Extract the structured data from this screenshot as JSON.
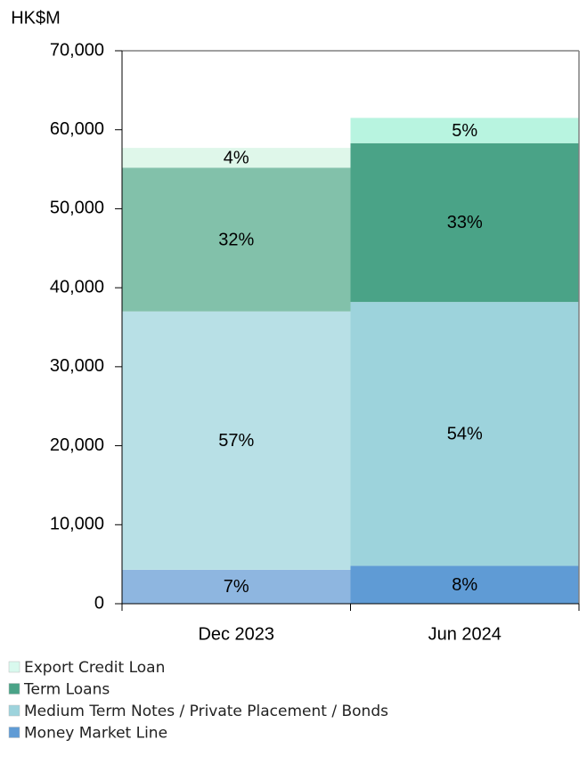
{
  "chart_data": {
    "type": "stacked_bar",
    "y_unit_label": "HK$M",
    "categories": [
      "Dec 2023",
      "Jun 2024"
    ],
    "series": [
      {
        "name": "Money Market Line",
        "color": "#5f9bd5",
        "colors": [
          "#8eb6e0",
          "#5f9bd5"
        ],
        "values": [
          4300,
          4800
        ],
        "value_labels": [
          "7%",
          "8%"
        ]
      },
      {
        "name": "Medium Term Notes / Private Placement / Bonds",
        "color": "#9dd3dc",
        "colors": [
          "#b8e0e6",
          "#9dd3dc"
        ],
        "values": [
          32700,
          33400
        ],
        "value_labels": [
          "57%",
          "54%"
        ]
      },
      {
        "name": "Term Loans",
        "color": "#4aa387",
        "colors": [
          "#82c1aa",
          "#4aa387"
        ],
        "values": [
          18200,
          20100
        ],
        "value_labels": [
          "32%",
          "33%"
        ]
      },
      {
        "name": "Export Credit Loan",
        "color": "#d9f9ee",
        "colors": [
          "#dff7ea",
          "#b8f4e0"
        ],
        "values": [
          2500,
          3200
        ],
        "value_labels": [
          "4%",
          "5%"
        ]
      }
    ],
    "ylim": [
      0,
      70000
    ],
    "yticks": [
      0,
      {
        "value": 10000,
        "label": "10,000"
      },
      {
        "value": 20000,
        "label": "20,000"
      },
      {
        "value": 30000,
        "label": "30,000"
      },
      {
        "value": 40000,
        "label": "40,000"
      },
      {
        "value": 50000,
        "label": "50,000"
      },
      {
        "value": 60000,
        "label": "60,000"
      },
      {
        "value": 70000,
        "label": "70,000"
      }
    ],
    "legend": "bottom-left"
  }
}
